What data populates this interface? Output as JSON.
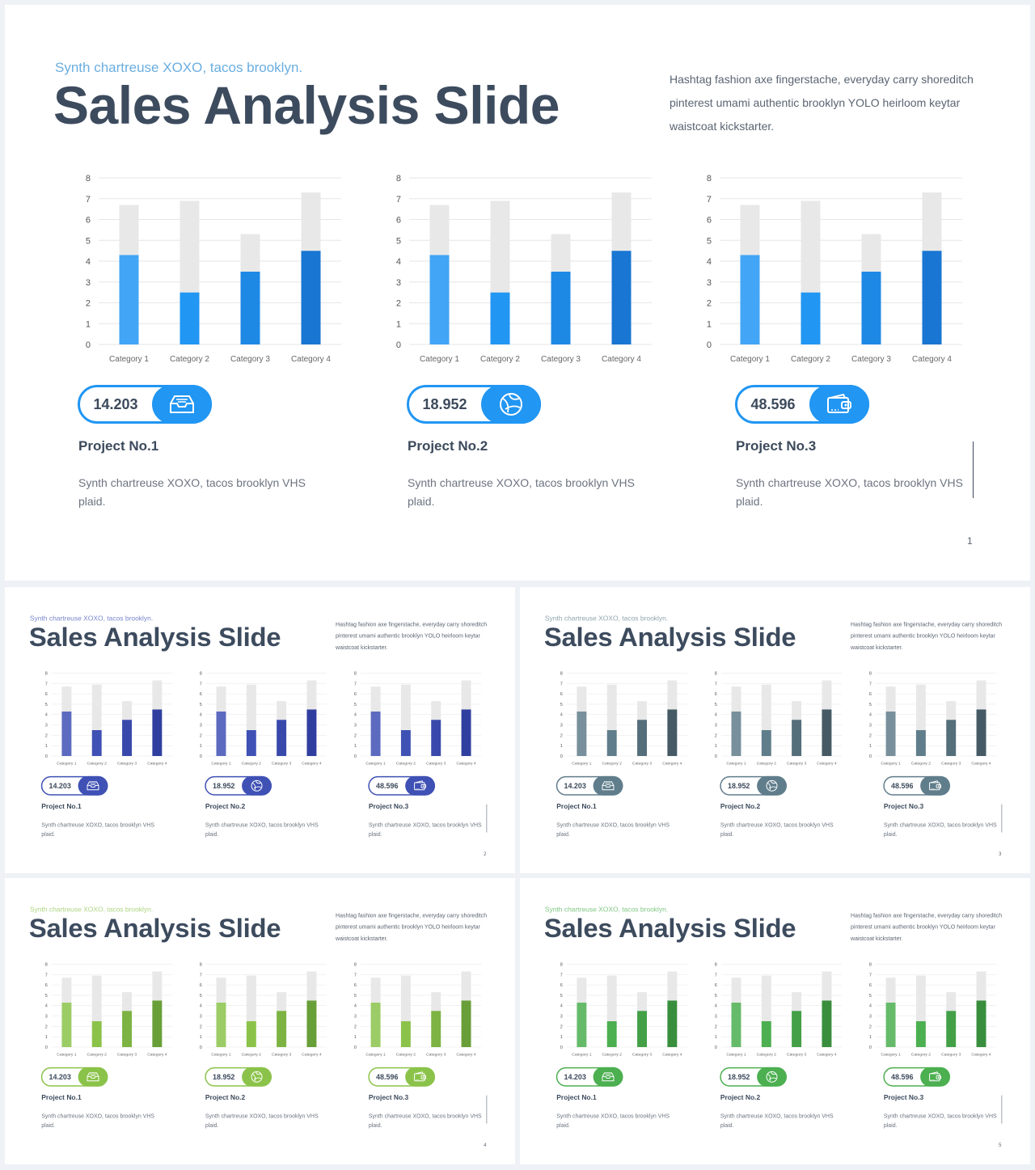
{
  "text": {
    "subtitle": "Synth chartreuse XOXO, tacos brooklyn.",
    "title": "Sales Analysis Slide",
    "description": "Hashtag fashion axe fingerstache, everyday carry shoreditch pinterest umami authentic brooklyn YOLO heirloom keytar waistcoat kickstarter."
  },
  "projects": [
    {
      "name": "Project No.1",
      "value": "14.203",
      "text": "Synth chartreuse XOXO, tacos brooklyn VHS plaid.",
      "icon": "inbox-tray-icon"
    },
    {
      "name": "Project No.2",
      "value": "18.952",
      "text": "Synth chartreuse XOXO, tacos brooklyn VHS plaid.",
      "icon": "globe-icon"
    },
    {
      "name": "Project No.3",
      "value": "48.596",
      "text": "Synth chartreuse XOXO, tacos brooklyn VHS plaid.",
      "icon": "wallet-icon"
    }
  ],
  "chart_data": {
    "type": "bar",
    "stacked": true,
    "categories": [
      "Category 1",
      "Category 2",
      "Category 3",
      "Category 4"
    ],
    "series": [
      {
        "values": [
          4.3,
          2.5,
          3.5,
          4.5
        ]
      },
      {
        "values": [
          2.4,
          4.4,
          1.8,
          2.8
        ]
      }
    ],
    "ylim": [
      0,
      8
    ],
    "yticks": [
      "0",
      "1",
      "2",
      "3",
      "4",
      "5",
      "6",
      "7",
      "8"
    ],
    "grid": true,
    "charts_per_slide": 3
  },
  "slides": [
    {
      "page": "1",
      "accent_text": "#6aaee0",
      "colors": [
        "#42a5f5",
        "#2196f3",
        "#1e88e5",
        "#1976d2"
      ],
      "bg": "#e8e8e8"
    },
    {
      "page": "2",
      "accent_text": "#7986cb",
      "colors": [
        "#5c6bc0",
        "#3f51b5",
        "#3949ab",
        "#303f9f"
      ],
      "bg": "#e8e8e8"
    },
    {
      "page": "3",
      "accent_text": "#90a4ae",
      "colors": [
        "#78909c",
        "#607d8b",
        "#546e7a",
        "#455a64"
      ],
      "bg": "#e8e8e8"
    },
    {
      "page": "4",
      "accent_text": "#aed581",
      "colors": [
        "#9ccc65",
        "#8bc34a",
        "#7cb342",
        "#689f38"
      ],
      "bg": "#e8e8e8"
    },
    {
      "page": "5",
      "accent_text": "#81c784",
      "colors": [
        "#66bb6a",
        "#4caf50",
        "#43a047",
        "#388e3c"
      ],
      "bg": "#e8e8e8"
    }
  ]
}
